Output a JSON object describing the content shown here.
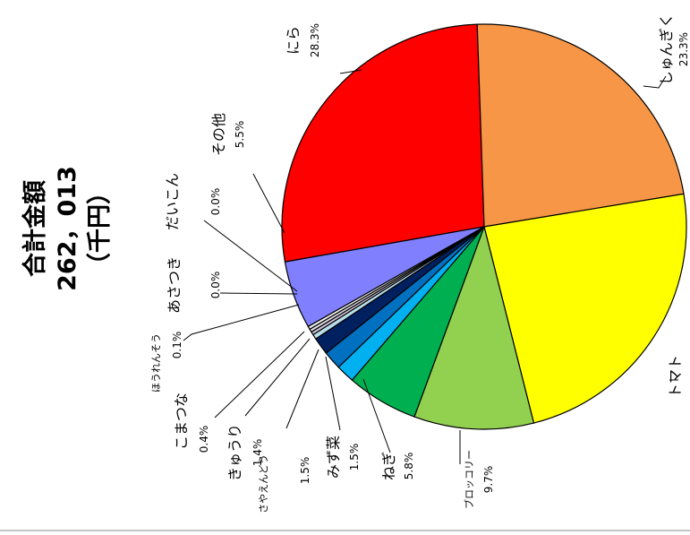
{
  "chart_data": {
    "type": "pie",
    "total": {
      "title": "合計金額",
      "value": "262，013",
      "unit": "（千円）"
    },
    "slices": [
      {
        "name": "にら",
        "pct_label": "28.3%",
        "value": 28.3,
        "color": "#FF0000"
      },
      {
        "name": "しゅんぎく",
        "pct_label": "23.3%",
        "value": 23.3,
        "color": "#F79646"
      },
      {
        "name": "トマト",
        "pct_label": "",
        "value": 24.0,
        "color": "#FFFF00"
      },
      {
        "name": "ブロッコリー",
        "pct_label": "9.7%",
        "value": 9.7,
        "color": "#92D050"
      },
      {
        "name": "ねぎ",
        "pct_label": "5.8%",
        "value": 5.8,
        "color": "#00B050"
      },
      {
        "name": "みず菜",
        "pct_label": "1.5%",
        "value": 1.5,
        "color": "#00B0F0"
      },
      {
        "name": "さやえんどう",
        "pct_label": "1.5%",
        "value": 1.5,
        "color": "#0070C0"
      },
      {
        "name": "きゅうり",
        "pct_label": "1.4%",
        "value": 1.4,
        "color": "#002060"
      },
      {
        "name": "こまつな",
        "pct_label": "0.4%",
        "value": 0.4,
        "color": "#B7DEE8"
      },
      {
        "name": "ほうれんそう",
        "pct_label": "0.1%",
        "value": 0.1,
        "color": "#CCC0DA"
      },
      {
        "name": "あさつき",
        "pct_label": "0.0%",
        "value": 0.0,
        "color": "#DDDDDD"
      },
      {
        "name": "だいこん",
        "pct_label": "0.0%",
        "value": 0.0,
        "color": "#EEEEEE"
      },
      {
        "name": "その他",
        "pct_label": "5.5%",
        "value": 5.5,
        "color": "#8080FF"
      }
    ]
  }
}
